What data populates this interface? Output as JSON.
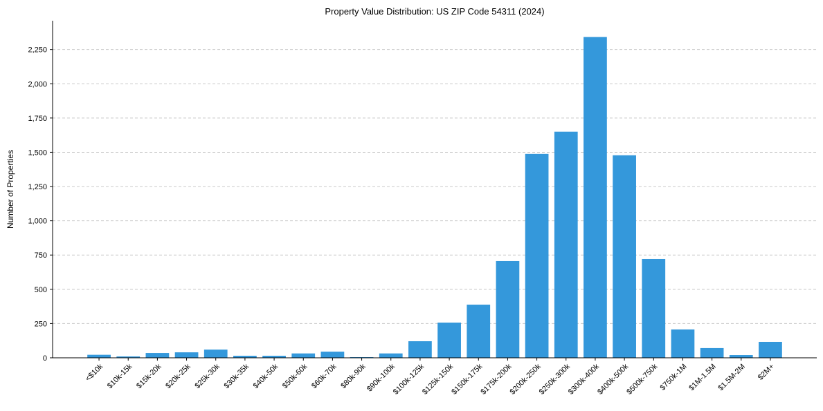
{
  "chart_data": {
    "type": "bar",
    "title": "Property Value Distribution: US ZIP Code 54311 (2024)",
    "xlabel": "",
    "ylabel": "Number of Properties",
    "categories": [
      "<$10k",
      "$10k-15k",
      "$15k-20k",
      "$20k-25k",
      "$25k-30k",
      "$30k-35k",
      "$40k-50k",
      "$50k-60k",
      "$60k-70k",
      "$80k-90k",
      "$90k-100k",
      "$100k-125k",
      "$125k-150k",
      "$150k-175k",
      "$175k-200k",
      "$200k-250k",
      "$250k-300k",
      "$300k-400k",
      "$400k-500k",
      "$500k-750k",
      "$750k-1M",
      "$1M-1.5M",
      "$1.5M-2M",
      "$2M+"
    ],
    "values": [
      22,
      10,
      35,
      40,
      60,
      15,
      15,
      32,
      45,
      5,
      32,
      121,
      257,
      388,
      706,
      1488,
      1650,
      2341,
      1478,
      721,
      207,
      71,
      20,
      116
    ],
    "ylim": [
      0,
      2460
    ],
    "yticks": [
      0,
      250,
      500,
      750,
      1000,
      1250,
      1500,
      1750,
      2000,
      2250
    ],
    "ytick_labels": [
      "0",
      "250",
      "500",
      "750",
      "1,000",
      "1,250",
      "1,500",
      "1,750",
      "2,000",
      "2,250"
    ],
    "grid": "y dashed",
    "bar_color": "#3498db"
  }
}
